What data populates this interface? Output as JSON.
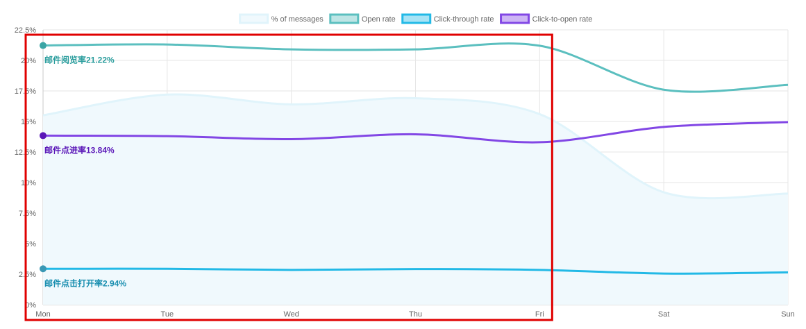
{
  "chart_data": {
    "type": "line",
    "x": [
      "Mon",
      "Tue",
      "Wed",
      "Thu",
      "Fri",
      "Sat",
      "Sun"
    ],
    "ylim": [
      0,
      22.5
    ],
    "yticks": [
      "0%",
      "2.5%",
      "5%",
      "7.5%",
      "10%",
      "12.5%",
      "15%",
      "17.5%",
      "20%",
      "22.5%"
    ],
    "grid": true,
    "legend_position": "top",
    "series": [
      {
        "name": "% of messages",
        "values": [
          15.5,
          17.2,
          16.4,
          16.9,
          15.6,
          9.2,
          9.1
        ],
        "color": "#e0f4fb",
        "fill": "#f0f9fd",
        "style": "area"
      },
      {
        "name": "Open rate",
        "values": [
          21.22,
          21.3,
          20.9,
          20.9,
          21.2,
          17.6,
          18.0
        ],
        "color": "#5bbfbf",
        "style": "line"
      },
      {
        "name": "Click-through rate",
        "values": [
          2.94,
          2.94,
          2.85,
          2.92,
          2.85,
          2.55,
          2.65
        ],
        "color": "#22b9e6",
        "style": "line"
      },
      {
        "name": "Click-to-open rate",
        "values": [
          13.84,
          13.8,
          13.55,
          13.95,
          13.3,
          14.55,
          14.95
        ],
        "color": "#8247e5",
        "style": "line"
      }
    ],
    "annotations": [
      {
        "text": "邮件阅览率21.22%",
        "series": 1,
        "x": "Mon",
        "value": 21.22,
        "color": "#2a9d9d",
        "dot": "#3aa5a5"
      },
      {
        "text": "邮件点进率13.84%",
        "series": 3,
        "x": "Mon",
        "value": 13.84,
        "color": "#5a17b8",
        "dot": "#5a17b8"
      },
      {
        "text": "邮件点击打开率2.94%",
        "series": 2,
        "x": "Mon",
        "value": 2.94,
        "color": "#1a8fb0",
        "dot": "#3a98b5"
      }
    ],
    "highlight": {
      "from": "Mon",
      "to": "Fri",
      "color": "#e00000"
    }
  }
}
